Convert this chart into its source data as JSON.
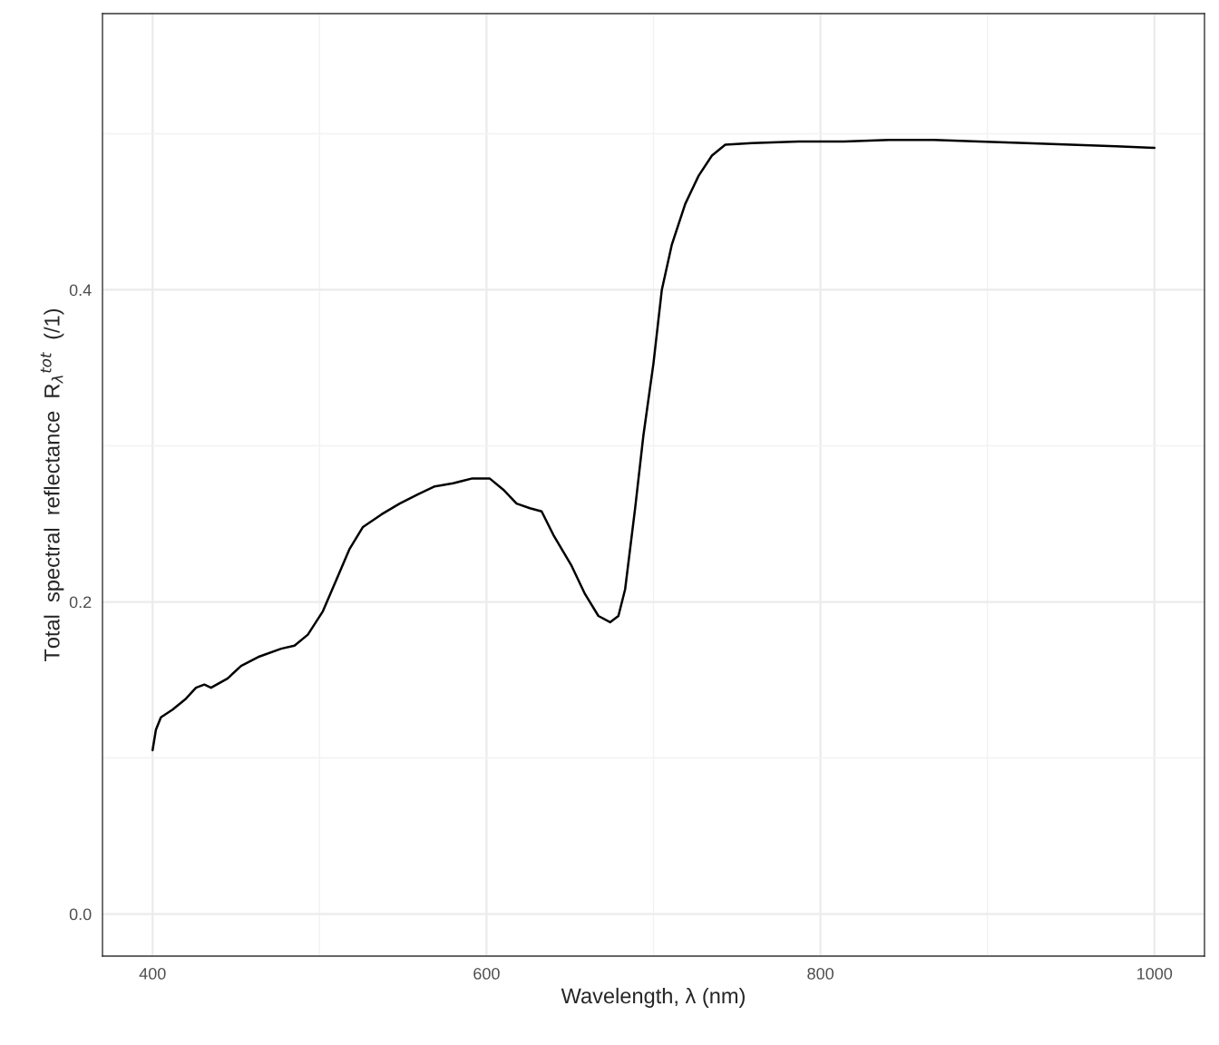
{
  "chart_data": {
    "type": "line",
    "xlabel": "Wavelength, λ (nm)",
    "ylabel": "Total  spectral  reflectance  R$_{λ}$$^{tot}$  (/1)",
    "xlim": [
      370,
      1030
    ],
    "ylim": [
      -0.027,
      0.577
    ],
    "xticks": [
      400,
      {
        "value": 500,
        "label": null
      },
      600,
      {
        "value": 700,
        "label": null
      },
      800,
      {
        "value": 900,
        "label": null
      },
      1000
    ],
    "yticks": [
      {
        "value": 0,
        "label": "0.0"
      },
      {
        "value": 0.1,
        "label": null
      },
      {
        "value": 0.2,
        "label": "0.2"
      },
      {
        "value": 0.3,
        "label": null
      },
      {
        "value": 0.4,
        "label": "0.4"
      },
      {
        "value": 0.5,
        "label": null
      }
    ],
    "grid": true,
    "marker": "none",
    "line_style": "solid",
    "series": [
      {
        "color": "#000000",
        "x": [
          400,
          402,
          405,
          412,
          420,
          426,
          431,
          435,
          445,
          453,
          464,
          477,
          485,
          493,
          502,
          510,
          518,
          526,
          537,
          548,
          559,
          569,
          580,
          591,
          602,
          610,
          618,
          626,
          633,
          640,
          651,
          659,
          667,
          674,
          679,
          683,
          689,
          694,
          700,
          705,
          711,
          719,
          727,
          735,
          743,
          759,
          787,
          814,
          841,
          868,
          895,
          923,
          950,
          977,
          1000
        ],
        "values": [
          0.105,
          0.118,
          0.126,
          0.131,
          0.138,
          0.145,
          0.147,
          0.145,
          0.151,
          0.159,
          0.165,
          0.17,
          0.172,
          0.179,
          0.194,
          0.214,
          0.234,
          0.248,
          0.256,
          0.263,
          0.269,
          0.274,
          0.276,
          0.279,
          0.279,
          0.272,
          0.263,
          0.26,
          0.258,
          0.243,
          0.223,
          0.205,
          0.191,
          0.187,
          0.191,
          0.208,
          0.26,
          0.307,
          0.353,
          0.4,
          0.429,
          0.455,
          0.473,
          0.486,
          0.493,
          0.494,
          0.495,
          0.495,
          0.496,
          0.496,
          0.495,
          0.494,
          0.493,
          0.492,
          0.491
        ]
      }
    ]
  }
}
